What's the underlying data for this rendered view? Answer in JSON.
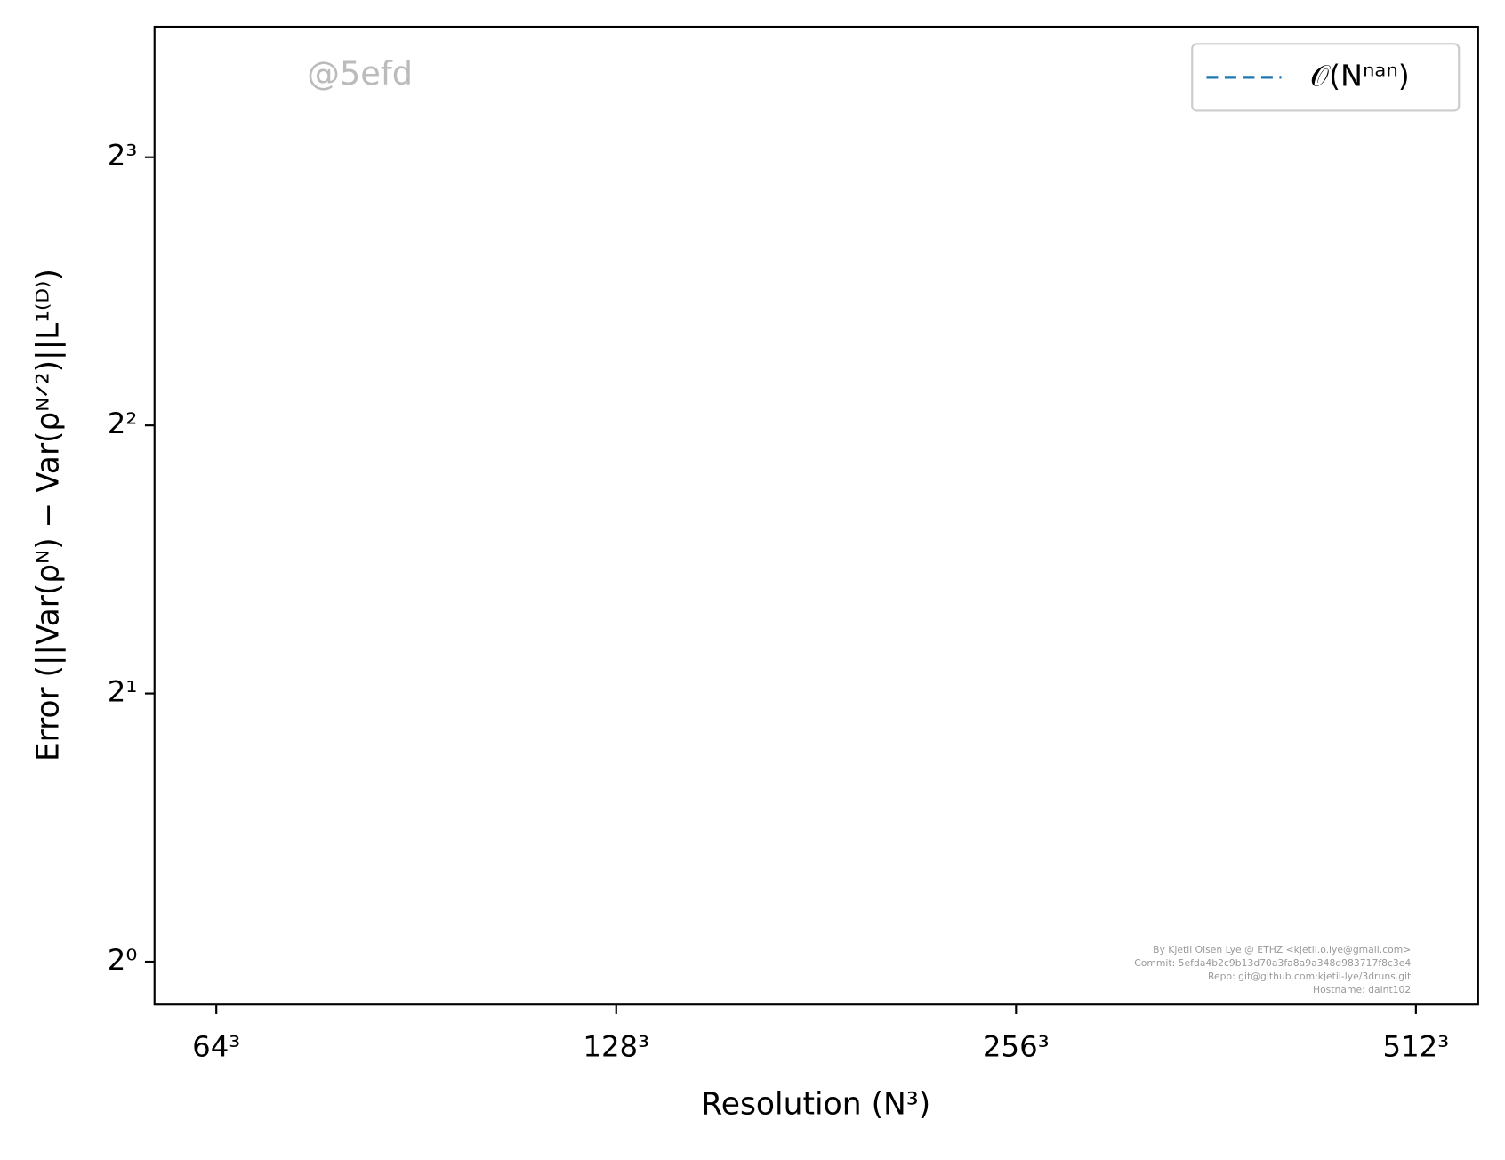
{
  "chart_data": {
    "type": "line",
    "xlabel": "Resolution (N³)",
    "ylabel": "Error (||Var(ρᴺ) − Var(ρᴺᐟ²)||L¹⁽ᴰ⁾)",
    "watermark": "@5efd",
    "footer": [
      "By Kjetil Olsen Lye @ ETHZ <kjetil.o.lye@gmail.com>",
      "Commit: 5efda4b2c9b13d70a3fa8a9a348d983717f8c3e4",
      "Repo: git@github.com:kjetil-lye/3druns.git",
      "Hostname: daint102"
    ],
    "xscale": "log2",
    "yscale": "log2",
    "xlim": [
      57.5,
      570.3
    ],
    "ylim": [
      0.895,
      11.21
    ],
    "xticks": [
      {
        "value": 64,
        "label": "64³"
      },
      {
        "value": 128,
        "label": "128³"
      },
      {
        "value": 256,
        "label": "256³"
      },
      {
        "value": 512,
        "label": "512³"
      }
    ],
    "yticks": [
      {
        "value": 1,
        "label": "2⁰"
      },
      {
        "value": 2,
        "label": "2¹"
      },
      {
        "value": 4,
        "label": "2²"
      },
      {
        "value": 8,
        "label": "2³"
      }
    ],
    "grid": false,
    "legend": "upper right",
    "x": [],
    "series": [
      {
        "name": "𝒪(Nⁿᵃⁿ)",
        "color": "#1f77b4",
        "dash": true,
        "values": []
      }
    ]
  }
}
